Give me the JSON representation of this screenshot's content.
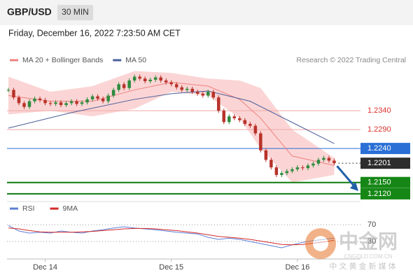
{
  "chart_data": {
    "type": "candlestick",
    "symbol": "GBP/USD",
    "interval": "30 MIN",
    "date": "Friday, December 16, 2022 7:23:50 AM CET",
    "source": "Research © 2022 Trading Central",
    "watermark": {
      "brand": "中金网",
      "site": "CNGOLD.COM.CN",
      "slogan": "中 文 黄 金 新 媒 体"
    },
    "xlim": [
      0,
      67
    ],
    "xticks": [
      {
        "value": 7,
        "label": "Dec 14"
      },
      {
        "value": 31,
        "label": "Dec 15"
      },
      {
        "value": 55,
        "label": "Dec 16"
      }
    ],
    "ylim": [
      1.2105,
      1.2494
    ],
    "up_color": "#2e8b3e",
    "down_color": "#b8322a",
    "x": [
      0,
      1,
      2,
      3,
      4,
      5,
      6,
      7,
      8,
      9,
      10,
      11,
      12,
      13,
      14,
      15,
      16,
      17,
      18,
      19,
      20,
      21,
      22,
      23,
      24,
      25,
      26,
      27,
      28,
      29,
      30,
      31,
      32,
      33,
      34,
      35,
      36,
      37,
      38,
      39,
      40,
      41,
      42,
      43,
      44,
      45,
      46,
      47,
      48,
      49,
      50,
      51,
      52,
      53,
      54,
      55,
      56,
      57,
      58,
      59,
      60,
      61,
      62
    ],
    "closes": [
      1.2395,
      1.2375,
      1.236,
      1.235,
      1.2365,
      1.2372,
      1.2368,
      1.236,
      1.2358,
      1.2362,
      1.2355,
      1.236,
      1.2365,
      1.2358,
      1.2362,
      1.237,
      1.2378,
      1.2372,
      1.2365,
      1.238,
      1.2395,
      1.241,
      1.24,
      1.242,
      1.243,
      1.2425,
      1.2418,
      1.2422,
      1.2428,
      1.242,
      1.2415,
      1.241,
      1.2402,
      1.2395,
      1.2398,
      1.239,
      1.2385,
      1.238,
      1.239,
      1.2375,
      1.234,
      1.231,
      1.2325,
      1.232,
      1.2315,
      1.2305,
      1.23,
      1.228,
      1.2235,
      1.221,
      1.219,
      1.217,
      1.2175,
      1.218,
      1.2185,
      1.219,
      1.2188,
      1.2195,
      1.22,
      1.221,
      1.2215,
      1.2208,
      1.2201
    ],
    "indicators": [
      {
        "name": "MA 20 + Bollinger Bands",
        "color": "#f08080",
        "band_color": "#fbd5d5",
        "x": [
          0,
          8,
          16,
          24,
          31,
          38,
          44,
          48,
          54,
          62
        ],
        "values": [
          1.238,
          1.2365,
          1.2365,
          1.2395,
          1.2415,
          1.2405,
          1.237,
          1.232,
          1.222,
          1.2195
        ],
        "upper": [
          1.243,
          1.239,
          1.2405,
          1.2445,
          1.244,
          1.2425,
          1.242,
          1.24,
          1.229,
          1.2215
        ],
        "lower": [
          1.233,
          1.234,
          1.2325,
          1.2345,
          1.239,
          1.238,
          1.232,
          1.224,
          1.215,
          1.217
        ]
      },
      {
        "name": "MA 50",
        "color": "#4a5f9a",
        "x": [
          0,
          12,
          24,
          31,
          38,
          46,
          54,
          62
        ],
        "values": [
          1.2294,
          1.2335,
          1.237,
          1.2385,
          1.2392,
          1.2365,
          1.2309,
          1.2253
        ]
      }
    ],
    "levels": [
      {
        "value": 1.234,
        "label": "1.2340",
        "style": "resistance"
      },
      {
        "value": 1.229,
        "label": "1.2290",
        "style": "resistance"
      },
      {
        "value": 1.224,
        "label": "1.2240",
        "style": "pivot"
      },
      {
        "value": 1.2201,
        "label": "1.2201",
        "style": "last"
      },
      {
        "value": 1.215,
        "label": "1.2150",
        "style": "support"
      },
      {
        "value": 1.212,
        "label": "1.2120",
        "style": "support"
      }
    ],
    "rsi": {
      "ylim": [
        0,
        100
      ],
      "yticks": [
        70,
        30
      ],
      "series": [
        {
          "name": "RSI",
          "color": "#5b7fd6",
          "x": [
            0,
            2,
            4,
            6,
            8,
            10,
            12,
            14,
            16,
            18,
            20,
            22,
            24,
            26,
            28,
            30,
            32,
            34,
            36,
            38,
            40,
            42,
            44,
            46,
            48,
            50,
            52,
            54,
            56,
            58,
            60,
            62
          ],
          "values": [
            68,
            55,
            50,
            52,
            50,
            55,
            52,
            50,
            55,
            58,
            62,
            65,
            62,
            60,
            58,
            55,
            52,
            50,
            48,
            40,
            35,
            38,
            35,
            30,
            25,
            20,
            15,
            22,
            28,
            32,
            35,
            38
          ]
        },
        {
          "name": "9MA",
          "color": "#d42a2a",
          "x": [
            0,
            2,
            4,
            6,
            8,
            10,
            12,
            14,
            16,
            18,
            20,
            22,
            24,
            26,
            28,
            30,
            32,
            34,
            36,
            38,
            40,
            42,
            44,
            46,
            48,
            50,
            52,
            54,
            56,
            58,
            60,
            62
          ],
          "values": [
            62,
            60,
            56,
            53,
            52,
            52,
            52,
            53,
            54,
            56,
            58,
            60,
            61,
            61,
            60,
            58,
            56,
            53,
            50,
            46,
            42,
            40,
            38,
            35,
            31,
            27,
            23,
            22,
            23,
            26,
            29,
            33
          ]
        }
      ]
    }
  }
}
